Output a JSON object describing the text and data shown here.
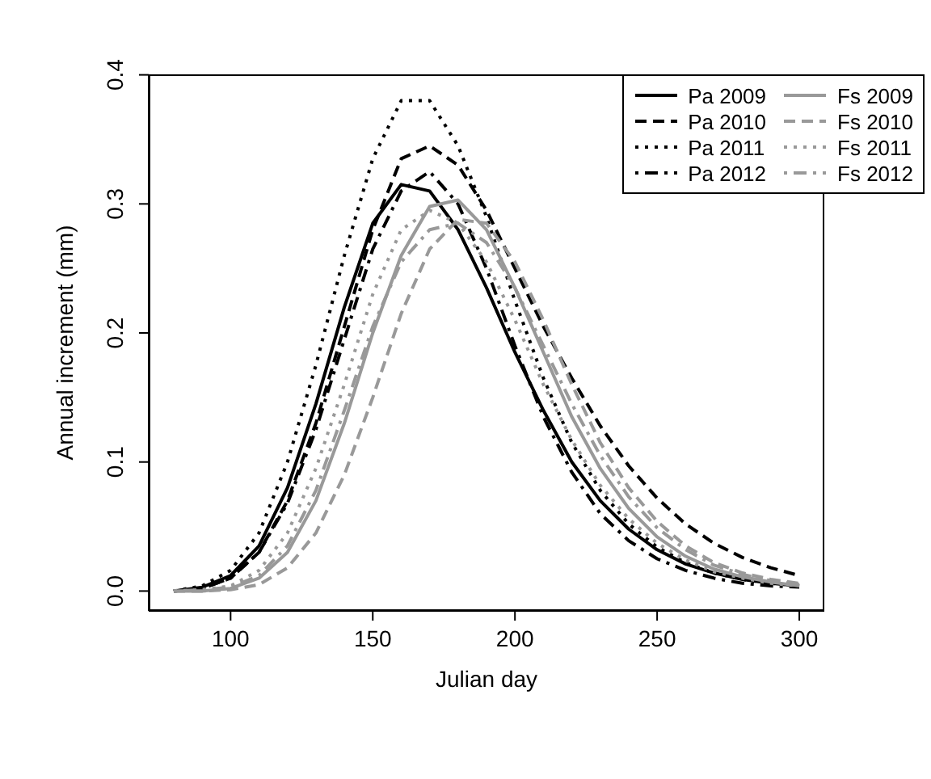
{
  "chart_data": {
    "type": "line",
    "xlabel": "Julian day",
    "ylabel": "Annual increment (mm)",
    "x": [
      80,
      90,
      100,
      110,
      120,
      130,
      140,
      150,
      160,
      170,
      180,
      190,
      200,
      210,
      220,
      230,
      240,
      250,
      260,
      270,
      280,
      290,
      300
    ],
    "xlim": [
      71.2,
      308.8
    ],
    "xticks": [
      100,
      150,
      200,
      250,
      300
    ],
    "ylim": [
      -0.0154,
      0.4004
    ],
    "yticks": [
      {
        "value": 0,
        "label": "0.0"
      },
      {
        "value": 0.1,
        "label": "0.1"
      },
      {
        "value": 0.2,
        "label": "0.2"
      },
      {
        "value": 0.3,
        "label": "0.3"
      },
      {
        "value": 0.4,
        "label": "0.4"
      }
    ],
    "grid": false,
    "legend": "top right",
    "marker": "none",
    "series": [
      {
        "name": "Pa 2009",
        "color": "#000000",
        "line_style": "solid",
        "values": [
          0,
          0.003,
          0.012,
          0.035,
          0.08,
          0.145,
          0.22,
          0.285,
          0.315,
          0.31,
          0.28,
          0.235,
          0.185,
          0.14,
          0.1,
          0.07,
          0.048,
          0.032,
          0.021,
          0.014,
          0.009,
          0.006,
          0.004
        ]
      },
      {
        "name": "Pa 2010",
        "color": "#000000",
        "line_style": "dashed",
        "values": [
          0,
          0.002,
          0.01,
          0.03,
          0.07,
          0.13,
          0.205,
          0.28,
          0.335,
          0.345,
          0.33,
          0.295,
          0.25,
          0.205,
          0.165,
          0.128,
          0.097,
          0.072,
          0.052,
          0.037,
          0.026,
          0.018,
          0.012
        ]
      },
      {
        "name": "Pa 2011",
        "color": "#000000",
        "line_style": "dotted",
        "values": [
          0,
          0.004,
          0.016,
          0.045,
          0.1,
          0.175,
          0.26,
          0.335,
          0.38,
          0.38,
          0.345,
          0.29,
          0.225,
          0.165,
          0.115,
          0.078,
          0.052,
          0.034,
          0.022,
          0.014,
          0.009,
          0.006,
          0.004
        ]
      },
      {
        "name": "Pa 2012",
        "color": "#000000",
        "line_style": "dashdot",
        "values": [
          0,
          0.002,
          0.01,
          0.03,
          0.068,
          0.125,
          0.195,
          0.265,
          0.31,
          0.325,
          0.3,
          0.25,
          0.19,
          0.135,
          0.092,
          0.06,
          0.039,
          0.025,
          0.016,
          0.01,
          0.006,
          0.004,
          0.003
        ]
      },
      {
        "name": "Fs 2009",
        "color": "#999999",
        "line_style": "solid",
        "values": [
          0,
          0,
          0.002,
          0.01,
          0.03,
          0.07,
          0.13,
          0.2,
          0.26,
          0.298,
          0.303,
          0.28,
          0.235,
          0.185,
          0.135,
          0.095,
          0.064,
          0.042,
          0.027,
          0.017,
          0.011,
          0.007,
          0.004
        ]
      },
      {
        "name": "Fs 2010",
        "color": "#999999",
        "line_style": "dashed",
        "values": [
          0,
          0,
          0.001,
          0.005,
          0.018,
          0.045,
          0.09,
          0.15,
          0.215,
          0.265,
          0.288,
          0.285,
          0.255,
          0.21,
          0.16,
          0.115,
          0.08,
          0.054,
          0.035,
          0.022,
          0.014,
          0.009,
          0.006
        ]
      },
      {
        "name": "Fs 2011",
        "color": "#999999",
        "line_style": "dotted",
        "values": [
          0,
          0.001,
          0.004,
          0.016,
          0.045,
          0.095,
          0.16,
          0.23,
          0.28,
          0.295,
          0.285,
          0.255,
          0.21,
          0.16,
          0.117,
          0.082,
          0.056,
          0.037,
          0.024,
          0.015,
          0.01,
          0.006,
          0.004
        ]
      },
      {
        "name": "Fs 2012",
        "color": "#999999",
        "line_style": "dashdot",
        "values": [
          0,
          0.001,
          0.003,
          0.012,
          0.035,
          0.078,
          0.14,
          0.205,
          0.255,
          0.28,
          0.285,
          0.27,
          0.235,
          0.19,
          0.145,
          0.105,
          0.073,
          0.049,
          0.032,
          0.02,
          0.013,
          0.008,
          0.005
        ]
      }
    ]
  }
}
